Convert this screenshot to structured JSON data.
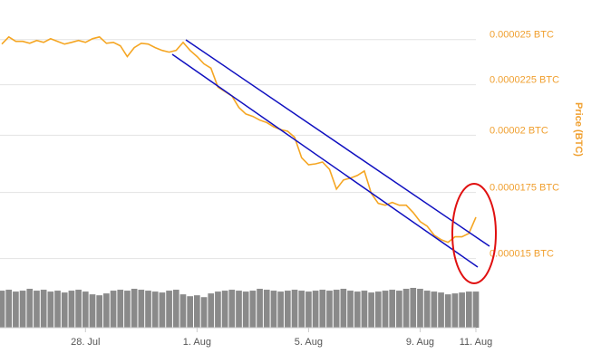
{
  "chart_data": {
    "type": "line",
    "y_label": "Price (BTC)",
    "categories": [
      null,
      null,
      null,
      null,
      null,
      null,
      null,
      null,
      null,
      null,
      null,
      null,
      "28. Jul",
      null,
      null,
      null,
      null,
      null,
      null,
      null,
      null,
      null,
      null,
      null,
      null,
      null,
      null,
      null,
      "1. Aug",
      null,
      null,
      null,
      null,
      null,
      null,
      null,
      null,
      null,
      null,
      null,
      null,
      null,
      null,
      null,
      "5. Aug",
      null,
      null,
      null,
      null,
      null,
      null,
      null,
      null,
      null,
      null,
      null,
      null,
      null,
      null,
      null,
      "9. Aug",
      null,
      null,
      null,
      null,
      null,
      null,
      null,
      "11. Aug"
    ],
    "values": [
      2.474e-05,
      2.516e-05,
      2.49e-05,
      2.49e-05,
      2.479e-05,
      2.495e-05,
      2.484e-05,
      2.505e-05,
      2.49e-05,
      2.474e-05,
      2.484e-05,
      2.495e-05,
      2.484e-05,
      2.505e-05,
      2.516e-05,
      2.479e-05,
      2.484e-05,
      2.464e-05,
      2.403e-05,
      2.454e-05,
      2.479e-05,
      2.474e-05,
      2.454e-05,
      2.438e-05,
      2.428e-05,
      2.438e-05,
      2.484e-05,
      2.438e-05,
      2.403e-05,
      2.363e-05,
      2.339e-05,
      2.238e-05,
      2.215e-05,
      2.192e-05,
      2.134e-05,
      2.102e-05,
      2.09e-05,
      2.072e-05,
      2.06e-05,
      2.04e-05,
      2.027e-05,
      2.019e-05,
      1.991e-05,
      1.898e-05,
      1.867e-05,
      1.871e-05,
      1.879e-05,
      1.847e-05,
      1.764e-05,
      1.802e-05,
      1.81e-05,
      1.821e-05,
      1.84e-05,
      1.746e-05,
      1.706e-05,
      1.699e-05,
      1.71e-05,
      1.699e-05,
      1.699e-05,
      1.67e-05,
      1.635e-05,
      1.618e-05,
      1.584e-05,
      1.568e-05,
      1.558e-05,
      1.578e-05,
      1.578e-05,
      1.591e-05,
      1.652e-05
    ],
    "color": "#f5a623",
    "volume": [
      40,
      41,
      39,
      40,
      42,
      40,
      41,
      39,
      40,
      38,
      40,
      41,
      39,
      36,
      35,
      37,
      40,
      41,
      40,
      42,
      41,
      40,
      39,
      38,
      40,
      41,
      36,
      34,
      35,
      33,
      37,
      39,
      40,
      41,
      40,
      39,
      40,
      42,
      41,
      40,
      39,
      40,
      41,
      40,
      39,
      40,
      41,
      40,
      41,
      42,
      40,
      39,
      40,
      38,
      39,
      40,
      41,
      40,
      42,
      43,
      42,
      40,
      39,
      38,
      36,
      37,
      38,
      39,
      39
    ],
    "volume_color": "#8a8a8a",
    "log_scale": true,
    "ylim": [
      1.48e-05,
      2.52e-05
    ],
    "yticks": [
      {
        "value": 1.5e-05,
        "label": "0.000015 BTC"
      },
      {
        "value": 1.75e-05,
        "label": "0.0000175 BTC"
      },
      {
        "value": 2e-05,
        "label": "0.00002 BTC"
      },
      {
        "value": 2.25e-05,
        "label": "0.0000225 BTC"
      },
      {
        "value": 2.5e-05,
        "label": "0.000025 BTC"
      }
    ],
    "grid": true
  }
}
